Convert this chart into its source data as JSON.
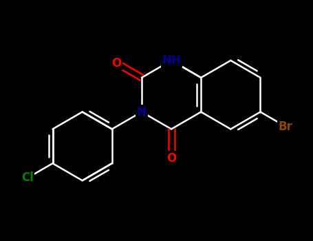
{
  "background_color": "#000000",
  "bond_color": "#ffffff",
  "bond_width": 1.8,
  "font_size_label": 11,
  "atom_colors": {
    "O": "#ff0000",
    "N": "#00008b",
    "Cl": "#008000",
    "Br": "#8b4513",
    "C": "#ffffff",
    "H": "#ffffff"
  },
  "figsize": [
    4.55,
    3.5
  ],
  "dpi": 100
}
